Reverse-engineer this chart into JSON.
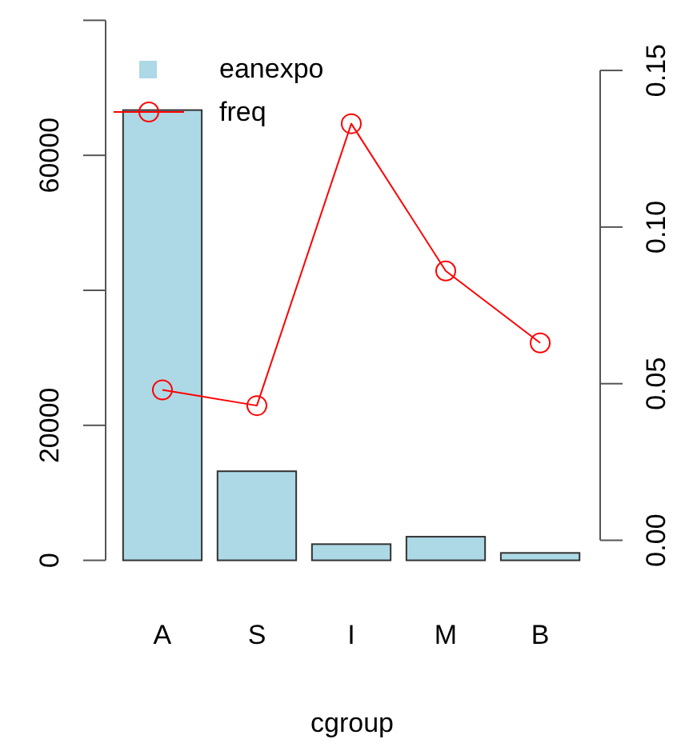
{
  "chart_data": {
    "type": "bar",
    "xlabel": "cgroup",
    "categories": [
      "A",
      "S",
      "I",
      "M",
      "B"
    ],
    "series": [
      {
        "name": "eanexpo",
        "color": "#add8e6",
        "values": [
          66700,
          13200,
          2400,
          3500,
          1100
        ]
      },
      {
        "name": "freq",
        "type": "line",
        "axis": "y2",
        "color": "#ff0000",
        "values": [
          0.048,
          0.043,
          0.133,
          0.086,
          0.063
        ]
      }
    ],
    "ylim": [
      0,
      80000
    ],
    "yticks": [
      0,
      20000,
      {
        "value": 40000,
        "label": null
      },
      60000,
      {
        "value": 80000,
        "label": null
      }
    ],
    "y2lim": [
      -0.0064,
      0.166
    ],
    "y2ticks": [
      {
        "value": 0,
        "label": "0.00"
      },
      {
        "value": 0.05,
        "label": "0.05"
      },
      {
        "value": 0.1,
        "label": "0.10"
      },
      {
        "value": 0.15,
        "label": "0.15"
      }
    ],
    "marker": "circle",
    "legend": "top left",
    "grid": false
  }
}
